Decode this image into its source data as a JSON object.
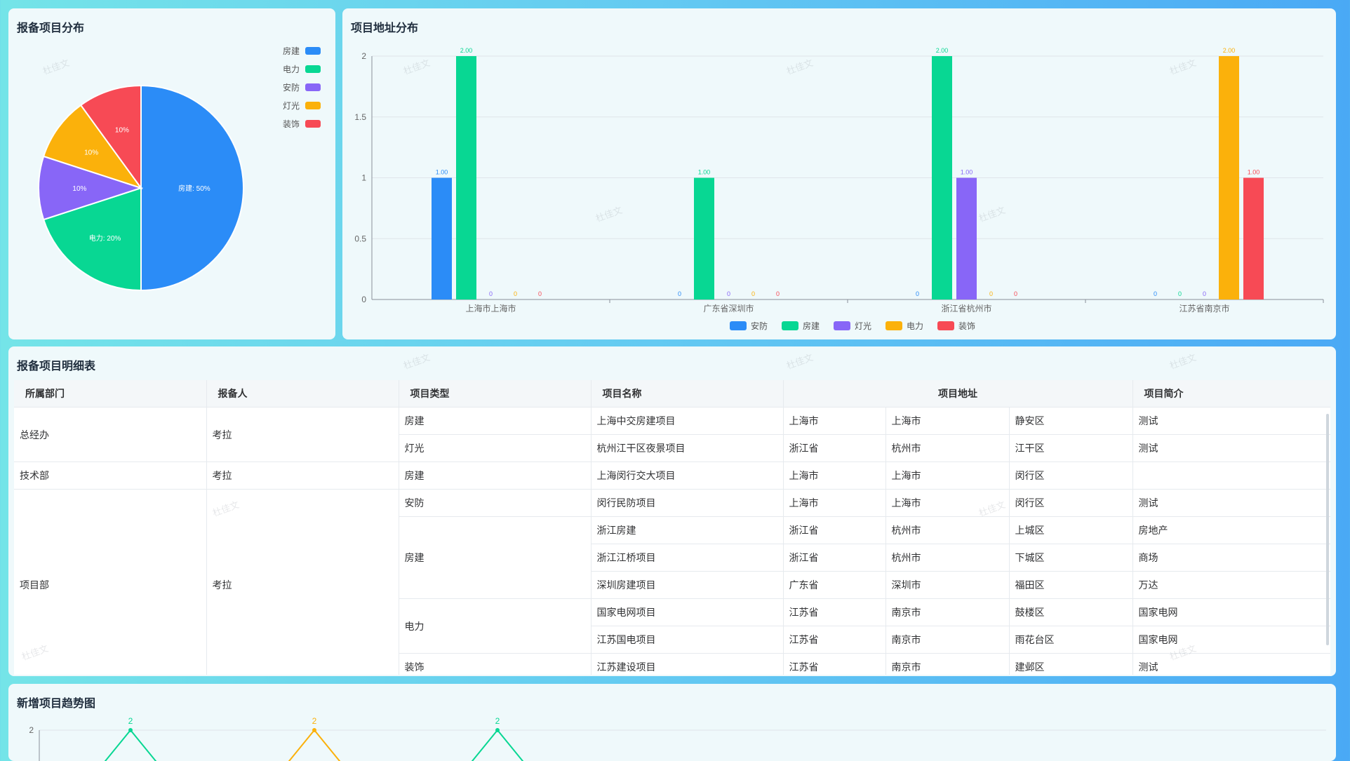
{
  "pie": {
    "title": "报备项目分布",
    "legend": [
      {
        "label": "房建",
        "color": "#2b8cf7"
      },
      {
        "label": "电力",
        "color": "#08d793"
      },
      {
        "label": "安防",
        "color": "#8866f7"
      },
      {
        "label": "灯光",
        "color": "#fbb10b"
      },
      {
        "label": "装饰",
        "color": "#f74a55"
      }
    ],
    "slice_labels": [
      "房建: 50%",
      "电力: 20%",
      "10%",
      "10%",
      "10%"
    ]
  },
  "bar": {
    "title": "项目地址分布",
    "legend": [
      {
        "label": "安防",
        "color": "#2b8cf7"
      },
      {
        "label": "房建",
        "color": "#08d793"
      },
      {
        "label": "灯光",
        "color": "#8866f7"
      },
      {
        "label": "电力",
        "color": "#fbb10b"
      },
      {
        "label": "装饰",
        "color": "#f74a55"
      }
    ]
  },
  "table": {
    "title": "报备项目明细表",
    "headers": [
      "所属部门",
      "报备人",
      "项目类型",
      "项目名称",
      "项目地址",
      "项目简介"
    ],
    "rows": [
      {
        "dept": "总经办",
        "reporter": "考拉",
        "type": "房建",
        "name": "上海中交房建项目",
        "prov": "上海市",
        "city": "上海市",
        "district": "静安区",
        "desc": "测试"
      },
      {
        "type": "灯光",
        "name": "杭州江干区夜景项目",
        "prov": "浙江省",
        "city": "杭州市",
        "district": "江干区",
        "desc": "测试"
      },
      {
        "dept": "技术部",
        "reporter": "考拉",
        "type": "房建",
        "name": "上海闵行交大项目",
        "prov": "上海市",
        "city": "上海市",
        "district": "闵行区",
        "desc": ""
      },
      {
        "dept": "项目部",
        "reporter": "考拉",
        "type": "安防",
        "name": "闵行民防项目",
        "prov": "上海市",
        "city": "上海市",
        "district": "闵行区",
        "desc": "测试"
      },
      {
        "type": "房建",
        "name": "浙江房建",
        "prov": "浙江省",
        "city": "杭州市",
        "district": "上城区",
        "desc": "房地产"
      },
      {
        "name": "浙江江桥项目",
        "prov": "浙江省",
        "city": "杭州市",
        "district": "下城区",
        "desc": "商场"
      },
      {
        "name": "深圳房建项目",
        "prov": "广东省",
        "city": "深圳市",
        "district": "福田区",
        "desc": "万达"
      },
      {
        "type": "电力",
        "name": "国家电网项目",
        "prov": "江苏省",
        "city": "南京市",
        "district": "鼓楼区",
        "desc": "国家电网"
      },
      {
        "name": "江苏国电项目",
        "prov": "江苏省",
        "city": "南京市",
        "district": "雨花台区",
        "desc": "国家电网"
      },
      {
        "type": "装饰",
        "name": "江苏建设项目",
        "prov": "江苏省",
        "city": "南京市",
        "district": "建邺区",
        "desc": "测试"
      }
    ]
  },
  "trend": {
    "title": "新增项目趋势图"
  },
  "watermark": "杜佳文",
  "chart_data": [
    {
      "type": "pie",
      "title": "报备项目分布",
      "labels": [
        "房建",
        "电力",
        "安防",
        "灯光",
        "装饰"
      ],
      "values": [
        50,
        20,
        10,
        10,
        10
      ],
      "unit": "%",
      "legend_placement": "top-right"
    },
    {
      "type": "bar",
      "title": "项目地址分布",
      "categories": [
        "上海市上海市",
        "广东省深圳市",
        "浙江省杭州市",
        "江苏省南京市"
      ],
      "series": [
        {
          "name": "安防",
          "values": [
            1,
            0,
            0,
            0
          ]
        },
        {
          "name": "房建",
          "values": [
            2,
            1,
            2,
            0
          ]
        },
        {
          "name": "灯光",
          "values": [
            0,
            0,
            1,
            0
          ]
        },
        {
          "name": "电力",
          "values": [
            0,
            0,
            0,
            2
          ]
        },
        {
          "name": "装饰",
          "values": [
            0,
            0,
            0,
            1
          ]
        }
      ],
      "data_labels": [
        [
          "1.00",
          "2.00",
          "0",
          "0",
          "0"
        ],
        [
          "0",
          "1.00",
          "0",
          "0",
          "0"
        ],
        [
          "0",
          "2.00",
          "1.00",
          "0",
          "0"
        ],
        [
          "0",
          "0",
          "0",
          "2.00",
          "1.00"
        ]
      ],
      "ylim": [
        0,
        2
      ],
      "yticks": [
        "0",
        "0.5",
        "1",
        "1.5",
        "2"
      ],
      "grid": true,
      "legend_placement": "bottom-center"
    },
    {
      "type": "line",
      "title": "新增项目趋势图",
      "y_visible_max": 2,
      "yticks": [
        "2"
      ],
      "visible_peak_labels": [
        "2",
        "2",
        "2"
      ],
      "grid": true,
      "note": "chart cropped at bottom of screenshot"
    }
  ]
}
